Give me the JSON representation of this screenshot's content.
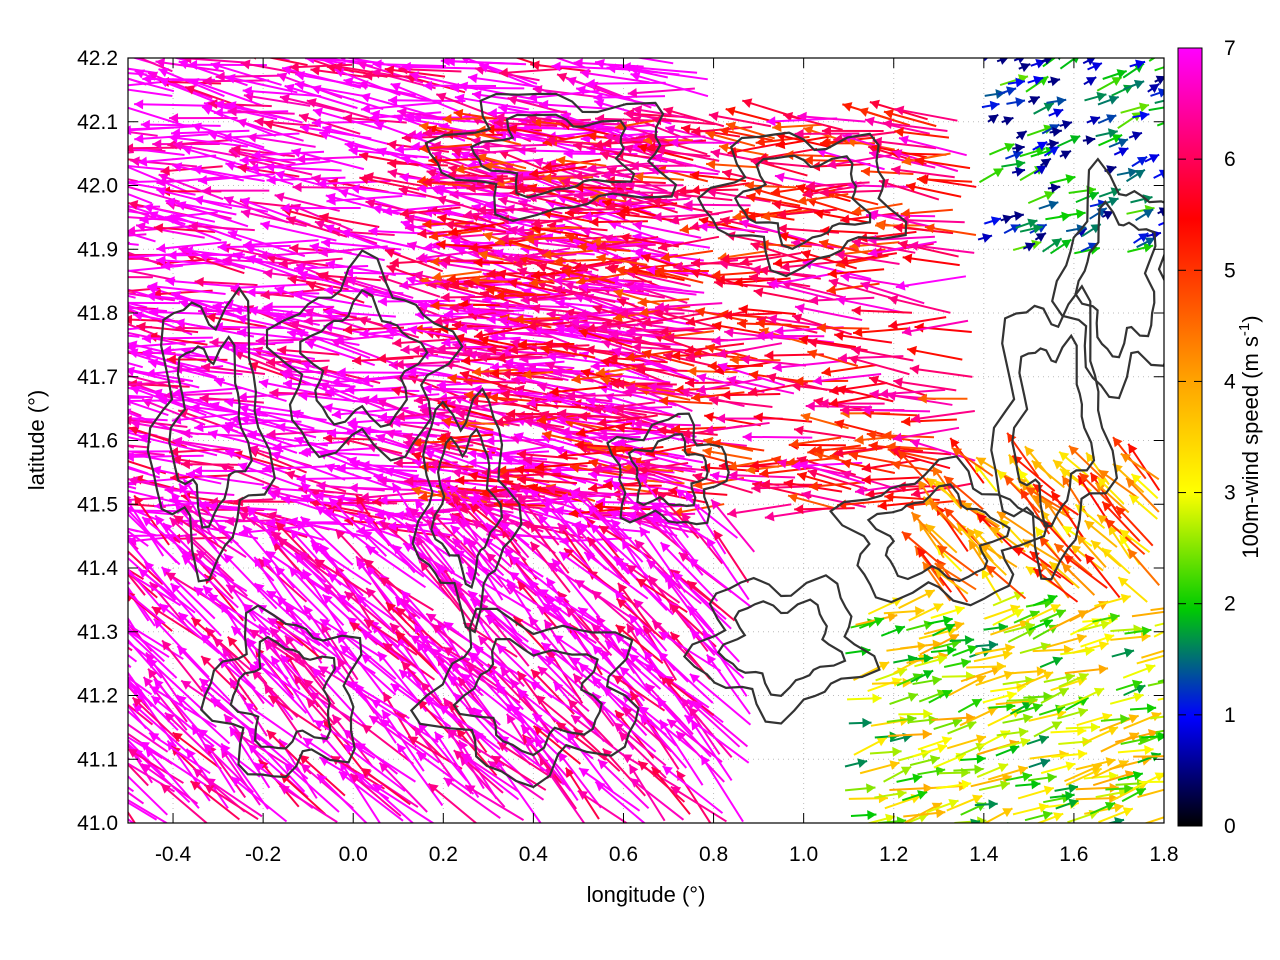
{
  "chart_data": {
    "type": "vector-field",
    "xlabel": "longitude (°)",
    "ylabel": "latitude (°)",
    "xlim": [
      -0.5,
      1.8
    ],
    "ylim": [
      41.0,
      42.2
    ],
    "xticks": [
      "-0.4",
      "-0.2",
      "0.0",
      "0.2",
      "0.4",
      "0.6",
      "0.8",
      "1.0",
      "1.2",
      "1.4",
      "1.6",
      "1.8"
    ],
    "xtick_values": [
      -0.4,
      -0.2,
      0.0,
      0.2,
      0.4,
      0.6,
      0.8,
      1.0,
      1.2,
      1.4,
      1.6,
      1.8
    ],
    "yticks": [
      "41.0",
      "41.1",
      "41.2",
      "41.3",
      "41.4",
      "41.5",
      "41.6",
      "41.7",
      "41.8",
      "41.9",
      "42.0",
      "42.1",
      "42.2"
    ],
    "ytick_values": [
      41.0,
      41.1,
      41.2,
      41.3,
      41.4,
      41.5,
      41.6,
      41.7,
      41.8,
      41.9,
      42.0,
      42.1,
      42.2
    ],
    "grid": true,
    "colorbar": {
      "label": "100m-wind speed (m s",
      "label_superscript": "-1",
      "label_suffix": ")",
      "range": [
        0,
        7
      ],
      "ticks": [
        "0",
        "1",
        "2",
        "3",
        "4",
        "5",
        "6",
        "7"
      ],
      "tick_values": [
        0,
        1,
        2,
        3,
        4,
        5,
        6,
        7
      ],
      "colormap": [
        "#000000",
        "#0000ff",
        "#00cc00",
        "#ffff00",
        "#ffa500",
        "#ff0000",
        "#ff00ff"
      ]
    },
    "contour_color": "#333333",
    "regimes": [
      {
        "name": "",
        "lon": [
          -0.5,
          0.8
        ],
        "lat": [
          41.45,
          42.2
        ],
        "u": -5.5,
        "v": 0.8,
        "speed": 7
      },
      {
        "name": "",
        "lon": [
          0.25,
          1.4
        ],
        "lat": [
          41.5,
          42.1
        ],
        "u": -5.0,
        "v": 0.3,
        "speed": 5.8
      },
      {
        "name": "",
        "lon": [
          -0.5,
          0.9
        ],
        "lat": [
          41.0,
          41.45
        ],
        "u": -3.0,
        "v": 3.0,
        "speed": 7
      },
      {
        "name": "",
        "lon": [
          1.1,
          1.8
        ],
        "lat": [
          41.0,
          41.35
        ],
        "u": 3.0,
        "v": 0.8,
        "speed": 2.8
      },
      {
        "name": "",
        "lon": [
          1.3,
          1.8
        ],
        "lat": [
          41.35,
          41.55
        ],
        "u": -1.5,
        "v": 1.5,
        "speed": 4.2
      },
      {
        "name": "",
        "lon": [
          1.4,
          1.8
        ],
        "lat": [
          41.9,
          42.2
        ],
        "u": 0.5,
        "v": 0.2,
        "speed": 1.2
      }
    ]
  }
}
